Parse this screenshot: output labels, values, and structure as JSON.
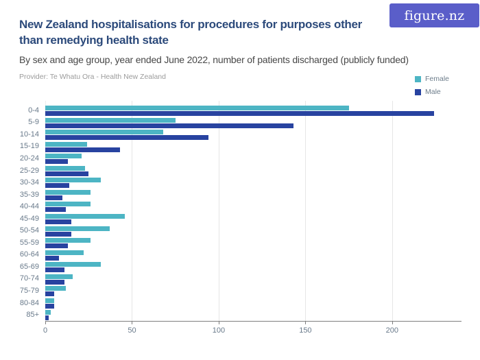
{
  "header": {
    "title_lines": [
      "New Zealand hospitalisations for procedures for purposes other",
      "than remedying health state"
    ],
    "subtitle": "By sex and age group, year ended June 2022, number of patients discharged (publicly funded)",
    "provider": "Provider: Te Whatu Ora - Health New Zealand",
    "logo_text": "figure.nz"
  },
  "legend": {
    "position": "top-right",
    "items": [
      {
        "label": "Female",
        "color": "#4db5c4"
      },
      {
        "label": "Male",
        "color": "#2843a0"
      }
    ]
  },
  "colors": {
    "title": "#2c4a7b",
    "subtitle": "#474747",
    "provider": "#9b9b9b",
    "axis_text": "#68798a",
    "gridline": "#e6e6e6",
    "axis_line": "#7d7d7d",
    "logo_background": "#5a5ec9",
    "logo_text": "#ffffff"
  },
  "chart_data": {
    "type": "bar",
    "orientation": "horizontal",
    "title": "New Zealand hospitalisations for procedures for purposes other than remedying health state",
    "subtitle": "By sex and age group, year ended June 2022, number of patients discharged (publicly funded)",
    "xlabel": "",
    "ylabel": "",
    "grid": "vertical",
    "legend_position": "top-right",
    "xlim": [
      0,
      240
    ],
    "x_ticks": [
      0,
      50,
      100,
      150,
      200
    ],
    "categories": [
      "0-4",
      "5-9",
      "10-14",
      "15-19",
      "20-24",
      "25-29",
      "30-34",
      "35-39",
      "40-44",
      "45-49",
      "50-54",
      "55-59",
      "60-64",
      "65-69",
      "70-74",
      "75-79",
      "80-84",
      "85+"
    ],
    "series": [
      {
        "name": "Female",
        "color": "#4db5c4",
        "values": [
          175,
          75,
          68,
          24,
          21,
          23,
          32,
          26,
          26,
          46,
          37,
          26,
          22,
          32,
          16,
          12,
          5,
          3
        ]
      },
      {
        "name": "Male",
        "color": "#2843a0",
        "values": [
          224,
          143,
          94,
          43,
          13,
          25,
          14,
          10,
          12,
          15,
          15,
          13,
          8,
          11,
          11,
          5,
          5,
          2
        ]
      }
    ]
  }
}
